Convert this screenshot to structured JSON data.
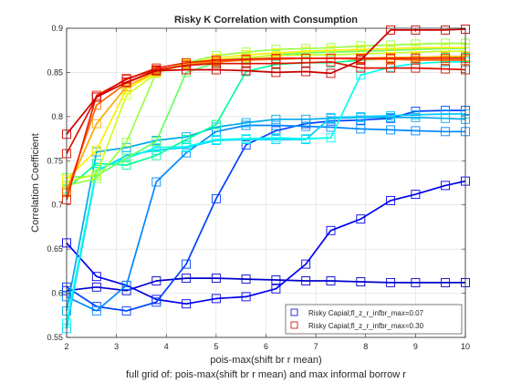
{
  "chart_data": {
    "type": "line",
    "title": "Risky K Correlation with Consumption",
    "xlabel": "pois-max(shift br r mean)",
    "caption": "full grid of: pois-max(shift br r mean) and max informal borrow r",
    "ylabel": "Correlation Coefficient",
    "xlim": [
      2,
      10
    ],
    "ylim": [
      0.55,
      0.9
    ],
    "xticks": [
      2,
      3,
      4,
      5,
      6,
      7,
      8,
      9,
      10
    ],
    "yticks": [
      0.55,
      0.6,
      0.65,
      0.7,
      0.75,
      0.8,
      0.85,
      0.9
    ],
    "ytick_labels": [
      "0.55",
      "0.6",
      "0.65",
      "0.7",
      "0.75",
      "0.8",
      "0.85",
      "0.9"
    ],
    "grid": true,
    "legend_position": "bottom-right",
    "legend": [
      {
        "label": "Risky Capial;fl_z_r_infbr_max=0.07",
        "color": "#0000cc"
      },
      {
        "label": "Risky Capial;fl_z_r_infbr_max=0.30",
        "color": "#cc0000"
      }
    ],
    "x": [
      2,
      2.6,
      3.2,
      3.8,
      4.4,
      5,
      5.6,
      6.2,
      6.8,
      7.3,
      7.9,
      8.5,
      9,
      9.6,
      10
    ],
    "series": [
      {
        "color": "#0000cc",
        "values": [
          0.603,
          0.607,
          0.603,
          0.614,
          0.617,
          0.617,
          0.616,
          0.615,
          0.614,
          0.614,
          0.613,
          0.612,
          0.612,
          0.612,
          0.612
        ]
      },
      {
        "color": "#0000ee",
        "values": [
          0.657,
          0.619,
          0.609,
          0.593,
          0.588,
          0.594,
          0.596,
          0.605,
          0.633,
          0.671,
          0.684,
          0.705,
          0.712,
          0.722,
          0.727
        ]
      },
      {
        "color": "#0040ff",
        "values": [
          0.607,
          0.585,
          0.58,
          0.59,
          0.633,
          0.707,
          0.768,
          0.784,
          0.792,
          0.795,
          0.796,
          0.798,
          0.806,
          0.807,
          0.807
        ]
      },
      {
        "color": "#0088ff",
        "values": [
          0.596,
          0.58,
          0.609,
          0.726,
          0.759,
          0.783,
          0.79,
          0.79,
          0.789,
          0.788,
          0.786,
          0.785,
          0.784,
          0.783,
          0.783
        ]
      },
      {
        "color": "#00aaee",
        "values": [
          0.58,
          0.76,
          0.765,
          0.773,
          0.777,
          0.788,
          0.793,
          0.797,
          0.797,
          0.798,
          0.799,
          0.799,
          0.799,
          0.798,
          0.797
        ]
      },
      {
        "color": "#00ccff",
        "values": [
          0.56,
          0.738,
          0.756,
          0.762,
          0.765,
          0.773,
          0.774,
          0.774,
          0.774,
          0.799,
          0.8,
          0.801,
          0.802,
          0.803,
          0.803
        ]
      },
      {
        "color": "#00ffee",
        "values": [
          0.566,
          0.74,
          0.753,
          0.765,
          0.766,
          0.774,
          0.775,
          0.776,
          0.775,
          0.776,
          0.847,
          0.856,
          0.86,
          0.862,
          0.862
        ]
      },
      {
        "color": "#00ff99",
        "values": [
          0.718,
          0.747,
          0.745,
          0.756,
          0.774,
          0.791,
          0.851,
          0.859,
          0.861,
          0.861,
          0.864,
          0.866,
          0.866,
          0.867,
          0.867
        ]
      },
      {
        "color": "#66ff66",
        "values": [
          0.731,
          0.733,
          0.753,
          0.772,
          0.85,
          0.861,
          0.866,
          0.87,
          0.872,
          0.873,
          0.874,
          0.875,
          0.876,
          0.877,
          0.877
        ]
      },
      {
        "color": "#99ff44",
        "values": [
          0.722,
          0.73,
          0.771,
          0.85,
          0.861,
          0.869,
          0.873,
          0.876,
          0.877,
          0.878,
          0.88,
          0.881,
          0.882,
          0.883,
          0.883
        ]
      },
      {
        "color": "#ccff22",
        "values": [
          0.726,
          0.735,
          0.824,
          0.849,
          0.86,
          0.864,
          0.867,
          0.869,
          0.87,
          0.87,
          0.871,
          0.872,
          0.873,
          0.874,
          0.874
        ]
      },
      {
        "color": "#ffee00",
        "values": [
          0.729,
          0.762,
          0.831,
          0.85,
          0.86,
          0.866,
          0.87,
          0.872,
          0.874,
          0.875,
          0.876,
          0.877,
          0.878,
          0.878,
          0.878
        ]
      },
      {
        "color": "#ffaa00",
        "values": [
          0.716,
          0.792,
          0.834,
          0.851,
          0.859,
          0.863,
          0.864,
          0.865,
          0.866,
          0.866,
          0.866,
          0.867,
          0.867,
          0.868,
          0.868
        ]
      },
      {
        "color": "#ff6600",
        "values": [
          0.714,
          0.813,
          0.838,
          0.852,
          0.858,
          0.862,
          0.864,
          0.865,
          0.866,
          0.866,
          0.865,
          0.865,
          0.864,
          0.864,
          0.864
        ]
      },
      {
        "color": "#ee2200",
        "values": [
          0.706,
          0.824,
          0.842,
          0.855,
          0.861,
          0.864,
          0.865,
          0.866,
          0.866,
          0.866,
          0.866,
          0.866,
          0.866,
          0.866,
          0.866
        ]
      },
      {
        "color": "#dd1100",
        "values": [
          0.758,
          0.822,
          0.843,
          0.853,
          0.858,
          0.86,
          0.86,
          0.86,
          0.861,
          0.862,
          0.855,
          0.855,
          0.855,
          0.854,
          0.853
        ]
      },
      {
        "color": "#cc0000",
        "values": [
          0.78,
          0.822,
          0.839,
          0.852,
          0.853,
          0.853,
          0.852,
          0.85,
          0.851,
          0.849,
          0.864,
          0.898,
          0.898,
          0.898,
          0.899
        ]
      }
    ]
  }
}
